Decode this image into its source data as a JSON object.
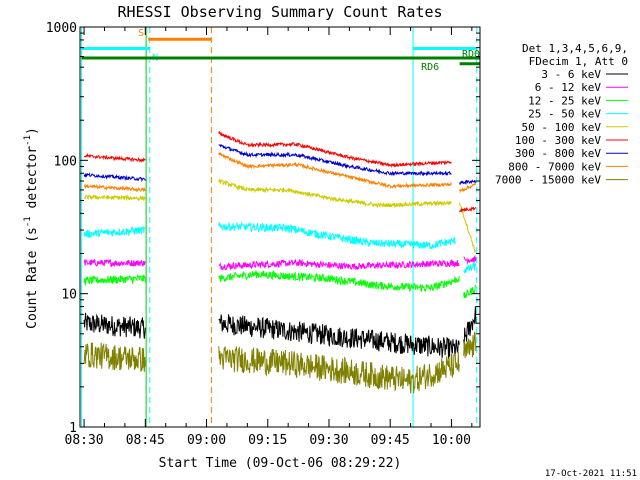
{
  "chart_data": {
    "type": "line",
    "title": "RHESSI Observing Summary Count Rates",
    "xlabel": "Start Time (09-Oct-06 08:29:22)",
    "ylabel_main": "Count Rate (s",
    "ylabel_sup1": "-1",
    "ylabel_mid": " detector",
    "ylabel_sup2": "-1",
    "ylabel_end": ")",
    "y_scale": "log",
    "ylim": [
      1,
      1000
    ],
    "xlim_minutes": [
      -1.0,
      97.0
    ],
    "time_origin": "08:30",
    "x_ticks": [
      {
        "m": 0,
        "label": "08:30"
      },
      {
        "m": 15,
        "label": "08:45"
      },
      {
        "m": 30,
        "label": "09:00"
      },
      {
        "m": 45,
        "label": "09:15"
      },
      {
        "m": 60,
        "label": "09:30"
      },
      {
        "m": 75,
        "label": "09:45"
      },
      {
        "m": 90,
        "label": "10:00"
      }
    ],
    "y_ticks": [
      {
        "v": 1,
        "label": "1"
      },
      {
        "v": 10,
        "label": "10"
      },
      {
        "v": 100,
        "label": "100"
      },
      {
        "v": 1000,
        "label": "1000"
      }
    ],
    "legend_header": [
      "Det 1,3,4,5,6,9,",
      "FDecim 1, Att 0"
    ],
    "series": [
      {
        "name": "3 - 6 keV",
        "color": "#000000",
        "noise": 0.08,
        "segments": [
          [
            0,
            6,
            15,
            5.5
          ],
          [
            33,
            6,
            92,
            3.8
          ],
          [
            93,
            4.5,
            96,
            7
          ]
        ]
      },
      {
        "name": "6 - 12 keV",
        "color": "#ff00ff",
        "noise": 0.025,
        "segments": [
          [
            0,
            17,
            15,
            17
          ],
          [
            33,
            16,
            52,
            17,
            65,
            16,
            92,
            17
          ],
          [
            93,
            18,
            96,
            18
          ]
        ]
      },
      {
        "name": "12 - 25 keV",
        "color": "#00ff00",
        "noise": 0.03,
        "segments": [
          [
            0,
            12.5,
            15,
            13
          ],
          [
            33,
            13,
            42,
            14,
            60,
            13,
            72,
            11.5,
            85,
            11,
            92,
            13
          ],
          [
            93,
            9.5,
            96,
            11
          ]
        ]
      },
      {
        "name": "25 - 50 keV",
        "color": "#00ffff",
        "noise": 0.03,
        "segments": [
          [
            0,
            28,
            15,
            30
          ],
          [
            33,
            32,
            50,
            31,
            57,
            28,
            70,
            24,
            85,
            23,
            91,
            25
          ],
          [
            93,
            15,
            96,
            16
          ]
        ]
      },
      {
        "name": "50 - 100 keV",
        "color": "#cccc00",
        "noise": 0.015,
        "segments": [
          [
            0,
            53,
            15,
            52
          ],
          [
            33,
            70,
            40,
            60,
            50,
            60,
            60,
            52,
            72,
            46,
            90,
            48
          ],
          [
            92,
            48,
            96,
            20
          ]
        ]
      },
      {
        "name": "100 - 300 keV",
        "color": "#ff0000",
        "noise": 0.012,
        "segments": [
          [
            0,
            108,
            15,
            100
          ],
          [
            33,
            160,
            40,
            130,
            52,
            132,
            65,
            105,
            75,
            92,
            90,
            97
          ],
          [
            92,
            42,
            96,
            44
          ]
        ]
      },
      {
        "name": "300 - 800 keV",
        "color": "#0000cc",
        "noise": 0.012,
        "segments": [
          [
            0,
            78,
            15,
            72
          ],
          [
            33,
            130,
            40,
            110,
            52,
            110,
            65,
            90,
            75,
            80,
            90,
            80
          ],
          [
            92,
            68,
            96,
            70
          ]
        ]
      },
      {
        "name": "800 - 7000 keV",
        "color": "#ff8000",
        "noise": 0.012,
        "segments": [
          [
            0,
            64,
            15,
            60
          ],
          [
            33,
            112,
            40,
            90,
            52,
            93,
            65,
            75,
            75,
            64,
            90,
            66
          ],
          [
            92,
            59,
            96,
            66
          ]
        ]
      },
      {
        "name": "7000 - 15000 keV",
        "color": "#808000",
        "noise": 0.1,
        "segments": [
          [
            0,
            3.5,
            15,
            3.2
          ],
          [
            33,
            3.3,
            50,
            3.0,
            65,
            2.6,
            80,
            2.2,
            92,
            3.0
          ],
          [
            93,
            3.5,
            96,
            4.2
          ]
        ]
      }
    ],
    "vlines": [
      {
        "m": -0.6,
        "color": "#00ffff",
        "style": "solid"
      },
      {
        "m": 15.2,
        "color": "#00cc00",
        "style": "solid"
      },
      {
        "m": 16.1,
        "color": "#00ffff",
        "style": "dashed"
      },
      {
        "m": 31.2,
        "color": "#ff8000",
        "style": "dashed"
      },
      {
        "m": 80.6,
        "color": "#00ffff",
        "style": "solid"
      },
      {
        "m": 96.2,
        "color": "#00ffff",
        "style": "dashed"
      }
    ],
    "bars": [
      {
        "label": "S",
        "color": "#ff8000",
        "start": 15.7,
        "end": 31.2,
        "value": 810
      },
      {
        "label": "N",
        "color": "#00ffff",
        "start": -0.6,
        "end": 16.1,
        "value": 690
      },
      {
        "label": "",
        "color": "#00ffff",
        "start": 80.6,
        "end": 96.2,
        "value": 690
      },
      {
        "label": "RD6",
        "color": "#008000",
        "start": -0.6,
        "end": 97.0,
        "value": 585
      },
      {
        "label": "RD0",
        "color": "#008000",
        "start": 92.0,
        "end": 97.0,
        "value": 530
      }
    ],
    "timestamp": "17-Oct-2021 11:51"
  }
}
